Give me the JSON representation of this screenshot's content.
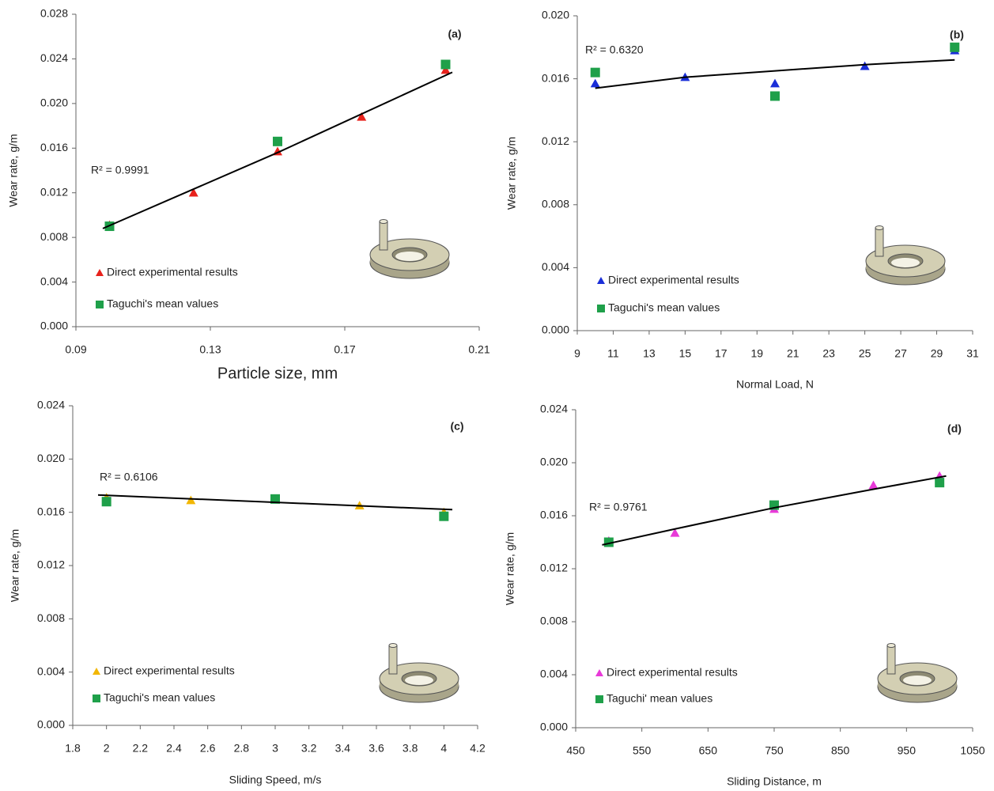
{
  "chart_data": [
    {
      "type": "scatter",
      "panel_label": "(a)",
      "r2": "R² = 0.9991",
      "x_label": "Particle size, mm",
      "y_label": "Wear rate, g/m",
      "xlim": [
        0.09,
        0.21
      ],
      "xticks": [
        0.09,
        0.13,
        0.17,
        0.21
      ],
      "ylim": [
        0,
        0.028
      ],
      "yticks": [
        {
          "value": 0,
          "label": "0.000"
        },
        0.004,
        0.008,
        0.012,
        0.016,
        {
          "value": 0.02,
          "label": "0.020"
        },
        0.024,
        0.028
      ],
      "series": [
        {
          "name": "Direct experimental results",
          "color": "#e8221c",
          "marker": "triangle",
          "x": [
            0.1,
            0.125,
            0.15,
            0.175,
            0.2
          ],
          "values": [
            0.0091,
            0.012,
            0.0157,
            0.0188,
            0.023
          ]
        },
        {
          "name": "Taguchi's mean values",
          "color": "#1fa04a",
          "marker": "square",
          "x": [
            0.1,
            0.15,
            0.2
          ],
          "values": [
            0.009,
            0.0166,
            0.0235
          ]
        }
      ],
      "trend": {
        "color": "#000000",
        "x": [
          0.098,
          0.15,
          0.202
        ],
        "y": [
          0.0088,
          0.0156,
          0.0228
        ]
      }
    },
    {
      "type": "scatter",
      "panel_label": "(b)",
      "r2": "R² = 0.6320",
      "x_label": "Normal Load, N",
      "y_label": "Wear rate, g/m",
      "xlim": [
        9,
        31
      ],
      "xticks": [
        9,
        11,
        13,
        15,
        17,
        19,
        21,
        23,
        25,
        27,
        29,
        31
      ],
      "ylim": [
        0,
        0.02
      ],
      "yticks": [
        {
          "value": 0,
          "label": "0.000"
        },
        0.004,
        0.008,
        0.012,
        0.016,
        {
          "value": 0.02,
          "label": "0.020"
        }
      ],
      "series": [
        {
          "name": "Direct experimental results",
          "color": "#1a2ed8",
          "marker": "triangle",
          "x": [
            10,
            15,
            20,
            25,
            30
          ],
          "values": [
            0.0157,
            0.0161,
            0.0157,
            0.0168,
            0.0178
          ]
        },
        {
          "name": "Taguchi's mean values",
          "color": "#1fa04a",
          "marker": "square",
          "x": [
            10,
            20,
            30
          ],
          "values": [
            0.0164,
            0.0149,
            0.018
          ]
        }
      ],
      "trend": {
        "color": "#000000",
        "x": [
          10,
          15,
          20,
          25,
          30
        ],
        "y": [
          0.0154,
          0.0161,
          0.0165,
          0.0169,
          0.0172
        ]
      }
    },
    {
      "type": "scatter",
      "panel_label": "(c)",
      "r2": "R² = 0.6106",
      "x_label": "Sliding Speed, m/s",
      "y_label": "Wear rate, g/m",
      "xlim": [
        1.8,
        4.2
      ],
      "xticks": [
        1.8,
        2,
        2.2,
        2.4,
        2.6,
        2.8,
        3,
        3.2,
        3.4,
        3.6,
        3.8,
        4,
        4.2
      ],
      "ylim": [
        0,
        0.024
      ],
      "yticks": [
        {
          "value": 0,
          "label": "0.000"
        },
        0.004,
        0.008,
        0.012,
        0.016,
        {
          "value": 0.02,
          "label": "0.020"
        },
        0.024
      ],
      "series": [
        {
          "name": "Direct experimental results",
          "color": "#f2b705",
          "marker": "triangle",
          "x": [
            2,
            2.5,
            3,
            3.5,
            4
          ],
          "values": [
            0.0171,
            0.0169,
            0.017,
            0.0165,
            0.016
          ]
        },
        {
          "name": "Taguchi's mean values",
          "color": "#1fa04a",
          "marker": "square",
          "x": [
            2,
            3,
            4
          ],
          "values": [
            0.0168,
            0.017,
            0.0157
          ]
        }
      ],
      "trend": {
        "color": "#000000",
        "x": [
          1.95,
          4.05
        ],
        "y": [
          0.0173,
          0.0162
        ]
      }
    },
    {
      "type": "scatter",
      "panel_label": "(d)",
      "r2": "R² = 0.9761",
      "x_label": "Sliding Distance, m",
      "y_label": "Wear rate, g/m",
      "xlim": [
        450,
        1050
      ],
      "xticks": [
        450,
        550,
        650,
        750,
        850,
        950,
        1050
      ],
      "ylim": [
        0,
        0.024
      ],
      "yticks": [
        {
          "value": 0,
          "label": "0.000"
        },
        0.004,
        0.008,
        0.012,
        0.016,
        {
          "value": 0.02,
          "label": "0.020"
        },
        0.024
      ],
      "series": [
        {
          "name": "Direct experimental results",
          "color": "#e83ad8",
          "marker": "triangle",
          "x": [
            500,
            600,
            750,
            900,
            1000
          ],
          "values": [
            0.0141,
            0.0147,
            0.0165,
            0.0183,
            0.019
          ]
        },
        {
          "name": "Taguchi' mean values",
          "color": "#1fa04a",
          "marker": "square",
          "x": [
            500,
            750,
            1000
          ],
          "values": [
            0.014,
            0.0168,
            0.0185
          ]
        }
      ],
      "trend": {
        "color": "#000000",
        "x": [
          490,
          600,
          750,
          900,
          1010
        ],
        "y": [
          0.0138,
          0.015,
          0.0166,
          0.018,
          0.019
        ]
      }
    }
  ]
}
